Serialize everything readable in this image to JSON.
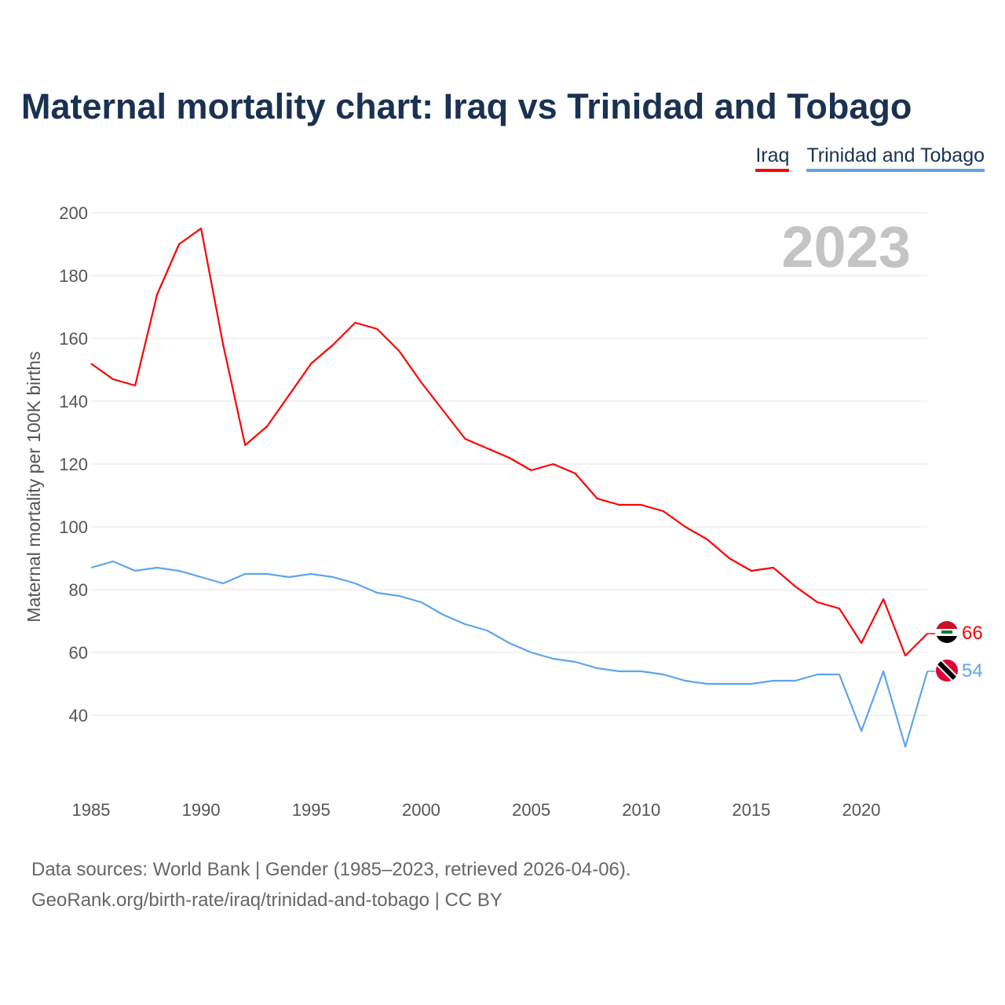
{
  "title": "Maternal mortality chart: Iraq vs Trinidad and Tobago",
  "year_label": "2023",
  "source_line1": "Data sources: World Bank | Gender (1985–2023, retrieved 2026-04-06).",
  "source_line2": "GeoRank.org/birth-rate/iraq/trinidad-and-tobago | CC BY",
  "chart_data": {
    "type": "line",
    "title": "Maternal mortality chart: Iraq vs Trinidad and Tobago",
    "xlabel": "",
    "ylabel": "Maternal mortality per 100K births",
    "xlim": [
      1985,
      2023
    ],
    "ylim": [
      40,
      200
    ],
    "yticks": [
      40,
      60,
      80,
      100,
      120,
      140,
      160,
      180,
      200
    ],
    "xticks": [
      1985,
      1990,
      1995,
      2000,
      2005,
      2010,
      2015,
      2020
    ],
    "grid": true,
    "legend_position": "top-right",
    "x": [
      1985,
      1986,
      1987,
      1988,
      1989,
      1990,
      1991,
      1992,
      1993,
      1994,
      1995,
      1996,
      1997,
      1998,
      1999,
      2000,
      2001,
      2002,
      2003,
      2004,
      2005,
      2006,
      2007,
      2008,
      2009,
      2010,
      2011,
      2012,
      2013,
      2014,
      2015,
      2016,
      2017,
      2018,
      2019,
      2020,
      2021,
      2022,
      2023
    ],
    "series": [
      {
        "name": "Iraq",
        "color": "#ff0000",
        "end_label": "66",
        "values": [
          152,
          147,
          145,
          174,
          190,
          195,
          158,
          126,
          132,
          142,
          152,
          158,
          165,
          163,
          156,
          146,
          137,
          128,
          125,
          122,
          118,
          120,
          117,
          109,
          107,
          107,
          105,
          100,
          96,
          90,
          86,
          87,
          81,
          76,
          74,
          63,
          77,
          59,
          66
        ]
      },
      {
        "name": "Trinidad and Tobago",
        "color": "#5ea5e8",
        "end_label": "54",
        "values": [
          87,
          89,
          86,
          87,
          86,
          84,
          82,
          85,
          85,
          84,
          85,
          84,
          82,
          79,
          78,
          76,
          72,
          69,
          67,
          63,
          60,
          58,
          57,
          55,
          54,
          54,
          53,
          51,
          50,
          50,
          50,
          51,
          51,
          53,
          53,
          35,
          54,
          30,
          54
        ]
      }
    ]
  }
}
